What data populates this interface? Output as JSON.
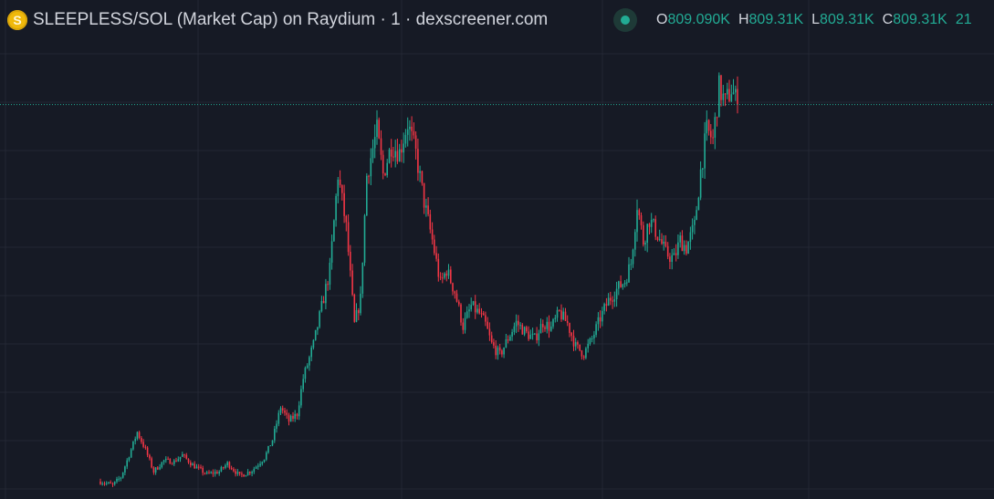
{
  "header": {
    "coin_icon_letter": "S",
    "title": "SLEEPLESS/SOL (Market Cap) on Raydium · 1 · dexscreener.com",
    "status_color": "#22ab94"
  },
  "ohlc": {
    "o_label": "O",
    "o_value": "809.090K",
    "h_label": "H",
    "h_value": "809.31K",
    "l_label": "L",
    "l_value": "809.31K",
    "c_label": "C",
    "c_value": "809.31K",
    "extra": "21"
  },
  "colors": {
    "background": "#161a25",
    "grid": "#232734",
    "up": "#22ab94",
    "down": "#f23645",
    "price_line": "#22ab94"
  },
  "chart_data": {
    "type": "candlestick",
    "title": "SLEEPLESS/SOL (Market Cap) on Raydium · 1 · dexscreener.com",
    "interval": "1",
    "y_units": "market cap (K)",
    "current_price": 809.31,
    "ylim": [
      90,
      1000
    ],
    "grid": true,
    "anchors": [
      {
        "i": 0,
        "v": 122
      },
      {
        "i": 6,
        "v": 115
      },
      {
        "i": 10,
        "v": 130
      },
      {
        "i": 14,
        "v": 170
      },
      {
        "i": 18,
        "v": 212
      },
      {
        "i": 22,
        "v": 180
      },
      {
        "i": 26,
        "v": 140
      },
      {
        "i": 31,
        "v": 160
      },
      {
        "i": 36,
        "v": 158
      },
      {
        "i": 40,
        "v": 170
      },
      {
        "i": 45,
        "v": 152
      },
      {
        "i": 52,
        "v": 135
      },
      {
        "i": 58,
        "v": 140
      },
      {
        "i": 62,
        "v": 155
      },
      {
        "i": 68,
        "v": 132
      },
      {
        "i": 74,
        "v": 142
      },
      {
        "i": 80,
        "v": 165
      },
      {
        "i": 84,
        "v": 198
      },
      {
        "i": 88,
        "v": 258
      },
      {
        "i": 92,
        "v": 232
      },
      {
        "i": 96,
        "v": 245
      },
      {
        "i": 99,
        "v": 310
      },
      {
        "i": 104,
        "v": 372
      },
      {
        "i": 108,
        "v": 440
      },
      {
        "i": 112,
        "v": 508
      },
      {
        "i": 116,
        "v": 682
      },
      {
        "i": 120,
        "v": 585
      },
      {
        "i": 124,
        "v": 408
      },
      {
        "i": 127,
        "v": 455
      },
      {
        "i": 130,
        "v": 680
      },
      {
        "i": 135,
        "v": 762
      },
      {
        "i": 138,
        "v": 682
      },
      {
        "i": 142,
        "v": 735
      },
      {
        "i": 146,
        "v": 722
      },
      {
        "i": 150,
        "v": 775
      },
      {
        "i": 154,
        "v": 720
      },
      {
        "i": 158,
        "v": 632
      },
      {
        "i": 162,
        "v": 562
      },
      {
        "i": 166,
        "v": 482
      },
      {
        "i": 169,
        "v": 508
      },
      {
        "i": 173,
        "v": 468
      },
      {
        "i": 177,
        "v": 405
      },
      {
        "i": 181,
        "v": 442
      },
      {
        "i": 185,
        "v": 428
      },
      {
        "i": 188,
        "v": 408
      },
      {
        "i": 191,
        "v": 372
      },
      {
        "i": 195,
        "v": 352
      },
      {
        "i": 199,
        "v": 383
      },
      {
        "i": 203,
        "v": 412
      },
      {
        "i": 208,
        "v": 392
      },
      {
        "i": 212,
        "v": 382
      },
      {
        "i": 216,
        "v": 412
      },
      {
        "i": 220,
        "v": 402
      },
      {
        "i": 224,
        "v": 430
      },
      {
        "i": 228,
        "v": 410
      },
      {
        "i": 232,
        "v": 368
      },
      {
        "i": 236,
        "v": 355
      },
      {
        "i": 240,
        "v": 382
      },
      {
        "i": 244,
        "v": 420
      },
      {
        "i": 248,
        "v": 452
      },
      {
        "i": 252,
        "v": 472
      },
      {
        "i": 256,
        "v": 488
      },
      {
        "i": 259,
        "v": 520
      },
      {
        "i": 262,
        "v": 628
      },
      {
        "i": 265,
        "v": 560
      },
      {
        "i": 268,
        "v": 600
      },
      {
        "i": 272,
        "v": 572
      },
      {
        "i": 276,
        "v": 538
      },
      {
        "i": 280,
        "v": 528
      },
      {
        "i": 283,
        "v": 562
      },
      {
        "i": 286,
        "v": 548
      },
      {
        "i": 290,
        "v": 588
      },
      {
        "i": 293,
        "v": 688
      },
      {
        "i": 296,
        "v": 762
      },
      {
        "i": 299,
        "v": 745
      },
      {
        "i": 302,
        "v": 840
      },
      {
        "i": 305,
        "v": 812
      },
      {
        "i": 308,
        "v": 838
      },
      {
        "i": 311,
        "v": 809.31
      }
    ],
    "series": [
      {
        "name": "SLEEPLESS/SOL",
        "type": "candlestick"
      }
    ]
  }
}
